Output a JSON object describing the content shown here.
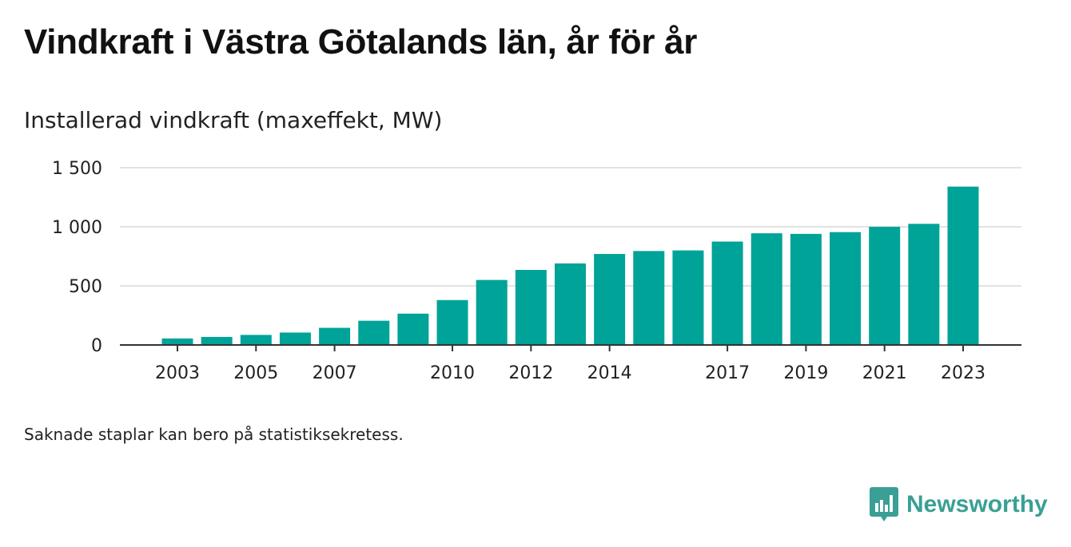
{
  "header": {
    "title": "Vindkraft i Västra Götalands län, år för år",
    "subtitle": "Installerad vindkraft (maxeffekt, MW)"
  },
  "footer": {
    "note": "Saknade staplar kan bero på statistiksekretess.",
    "brand": "Newsworthy",
    "brand_icon": "newsworthy-logo-icon"
  },
  "colors": {
    "bar": "#00a398",
    "brand": "#3a9f94",
    "grid": "#d9d9d9",
    "axis": "#333333"
  },
  "chart_data": {
    "type": "bar",
    "title": "Vindkraft i Västra Götalands län, år för år",
    "subtitle": "Installerad vindkraft (maxeffekt, MW)",
    "xlabel": "",
    "ylabel": "",
    "ylim": [
      0,
      1500
    ],
    "yticks": [
      0,
      500,
      1000,
      1500
    ],
    "ytick_labels": [
      "0",
      "500",
      "1 000",
      "1 500"
    ],
    "xtick_labels": [
      "2003",
      "2005",
      "2007",
      "2010",
      "2012",
      "2014",
      "2017",
      "2019",
      "2021",
      "2023"
    ],
    "grid": true,
    "legend": "none",
    "categories": [
      "2003",
      "2004",
      "2005",
      "2006",
      "2007",
      "2008",
      "2009",
      "2010",
      "2011",
      "2012",
      "2013",
      "2014",
      "2015",
      "2016",
      "2017",
      "2018",
      "2019",
      "2020",
      "2021",
      "2022",
      "2023"
    ],
    "values": [
      55,
      68,
      85,
      105,
      145,
      205,
      265,
      380,
      550,
      635,
      690,
      770,
      795,
      800,
      875,
      945,
      940,
      955,
      1000,
      1025,
      1340
    ]
  }
}
